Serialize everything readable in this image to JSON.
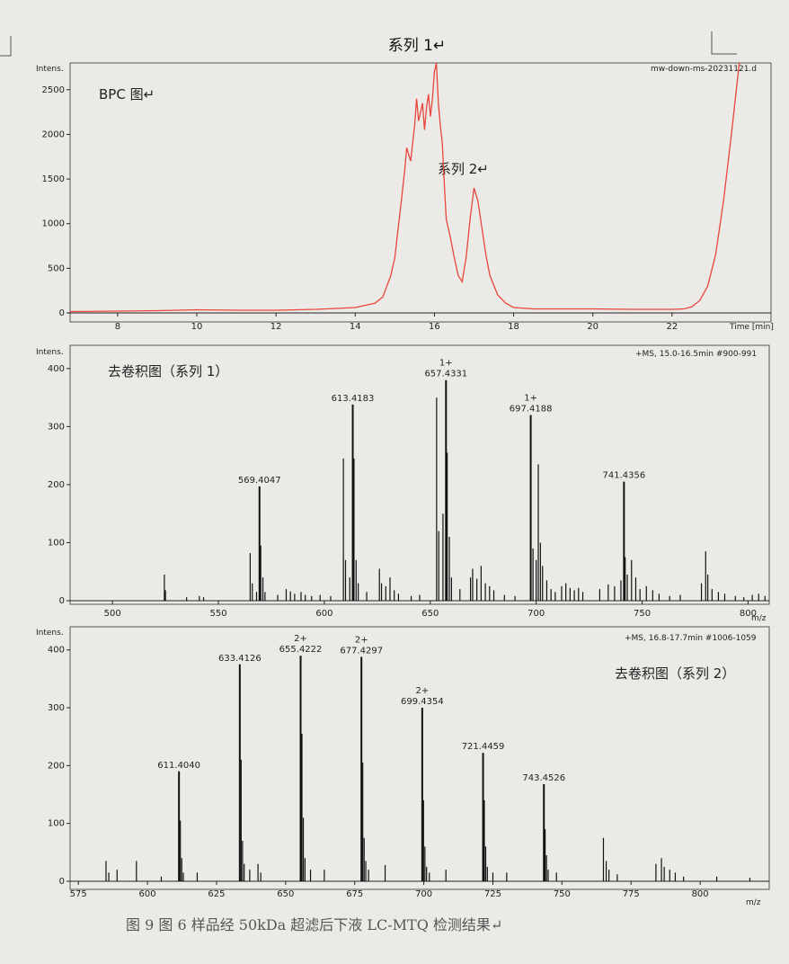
{
  "page": {
    "title": "系列 1↵",
    "caption": "图 9   图 6 样品经 50kDa 超滤后下液 LC-MTQ 检测结果↵"
  },
  "chart_data": [
    {
      "type": "line",
      "name": "BPC",
      "ylabel": "Intens.",
      "xlabel": "Time [min]",
      "info": "mw-down-ms-20231121.d",
      "annotations": [
        "BPC 图↵",
        "系列 2↵"
      ],
      "xlim": [
        6.8,
        24.5
      ],
      "ylim": [
        0,
        2800
      ],
      "xticks": [
        8,
        10,
        12,
        14,
        16,
        18,
        20,
        22
      ],
      "yticks": [
        0,
        500,
        1000,
        1500,
        2000,
        2500
      ],
      "color": "#e8463c",
      "x": [
        6.8,
        8,
        9,
        10,
        11,
        12,
        13,
        14,
        14.5,
        14.7,
        14.8,
        14.9,
        15.0,
        15.05,
        15.15,
        15.25,
        15.3,
        15.4,
        15.5,
        15.55,
        15.6,
        15.7,
        15.75,
        15.8,
        15.85,
        15.9,
        15.95,
        16.0,
        16.05,
        16.1,
        16.15,
        16.2,
        16.25,
        16.3,
        16.4,
        16.5,
        16.6,
        16.7,
        16.8,
        16.9,
        17.0,
        17.1,
        17.2,
        17.3,
        17.4,
        17.6,
        17.8,
        18.0,
        18.5,
        19,
        20,
        21,
        22,
        22.3,
        22.5,
        22.7,
        22.9,
        23.1,
        23.3,
        23.5,
        23.7
      ],
      "y": [
        15,
        20,
        25,
        35,
        30,
        30,
        40,
        60,
        110,
        180,
        300,
        420,
        620,
        820,
        1200,
        1600,
        1850,
        1700,
        2100,
        2400,
        2150,
        2350,
        2050,
        2300,
        2450,
        2200,
        2400,
        2700,
        2800,
        2350,
        2100,
        1900,
        1450,
        1050,
        850,
        620,
        420,
        350,
        620,
        1050,
        1400,
        1250,
        950,
        650,
        420,
        200,
        110,
        60,
        45,
        45,
        45,
        40,
        40,
        45,
        70,
        140,
        300,
        650,
        1250,
        2000,
        2800
      ]
    },
    {
      "type": "bar",
      "name": "去卷积图（系列 1）",
      "ylabel": "Intens.",
      "xlabel": "m/z",
      "info": "+MS, 15.0-16.5min #900-991",
      "xlim": [
        480,
        810
      ],
      "ylim": [
        0,
        440
      ],
      "xticks": [
        500,
        550,
        600,
        650,
        700,
        750,
        800
      ],
      "yticks": [
        0,
        100,
        200,
        300,
        400
      ],
      "peaks": [
        {
          "x": 569.4047,
          "y": 197,
          "label": "569.4047"
        },
        {
          "x": 613.4183,
          "y": 338,
          "label": "613.4183"
        },
        {
          "x": 657.4331,
          "y": 380,
          "label": "657.4331",
          "charge": "1+"
        },
        {
          "x": 697.4188,
          "y": 320,
          "label": "697.4188",
          "charge": "1+"
        },
        {
          "x": 741.4356,
          "y": 205,
          "label": "741.4356"
        }
      ],
      "minor": [
        [
          524.5,
          45
        ],
        [
          525,
          18
        ],
        [
          535,
          6
        ],
        [
          541,
          8
        ],
        [
          543,
          6
        ],
        [
          565,
          82
        ],
        [
          566,
          30
        ],
        [
          568,
          15
        ],
        [
          570,
          95
        ],
        [
          571,
          40
        ],
        [
          572,
          15
        ],
        [
          578,
          10
        ],
        [
          582,
          20
        ],
        [
          584,
          16
        ],
        [
          586,
          12
        ],
        [
          589,
          15
        ],
        [
          591,
          10
        ],
        [
          594,
          8
        ],
        [
          598,
          10
        ],
        [
          603,
          8
        ],
        [
          609,
          245
        ],
        [
          610,
          70
        ],
        [
          612,
          40
        ],
        [
          614,
          245
        ],
        [
          615,
          70
        ],
        [
          616,
          30
        ],
        [
          620,
          15
        ],
        [
          626,
          55
        ],
        [
          627,
          30
        ],
        [
          629,
          25
        ],
        [
          631,
          40
        ],
        [
          633,
          18
        ],
        [
          635,
          12
        ],
        [
          641,
          8
        ],
        [
          645,
          10
        ],
        [
          653,
          350
        ],
        [
          654,
          120
        ],
        [
          656,
          150
        ],
        [
          658,
          255
        ],
        [
          659,
          110
        ],
        [
          660,
          40
        ],
        [
          664,
          20
        ],
        [
          669,
          40
        ],
        [
          670,
          55
        ],
        [
          672,
          38
        ],
        [
          674,
          60
        ],
        [
          676,
          30
        ],
        [
          678,
          25
        ],
        [
          680,
          18
        ],
        [
          685,
          10
        ],
        [
          690,
          8
        ],
        [
          697.5,
          170
        ],
        [
          698.5,
          90
        ],
        [
          700,
          70
        ],
        [
          701,
          235
        ],
        [
          702,
          100
        ],
        [
          703,
          60
        ],
        [
          705,
          35
        ],
        [
          707,
          20
        ],
        [
          709,
          15
        ],
        [
          712,
          25
        ],
        [
          714,
          30
        ],
        [
          716,
          22
        ],
        [
          718,
          18
        ],
        [
          720,
          22
        ],
        [
          722,
          15
        ],
        [
          730,
          20
        ],
        [
          734,
          28
        ],
        [
          737,
          25
        ],
        [
          740,
          35
        ],
        [
          742,
          75
        ],
        [
          743,
          45
        ],
        [
          745,
          70
        ],
        [
          747,
          40
        ],
        [
          749,
          20
        ],
        [
          752,
          25
        ],
        [
          755,
          18
        ],
        [
          758,
          12
        ],
        [
          763,
          8
        ],
        [
          768,
          10
        ],
        [
          778,
          30
        ],
        [
          780,
          85
        ],
        [
          781,
          45
        ],
        [
          783,
          20
        ],
        [
          786,
          15
        ],
        [
          789,
          12
        ],
        [
          794,
          8
        ],
        [
          798,
          6
        ],
        [
          802,
          10
        ],
        [
          805,
          12
        ],
        [
          808,
          8
        ]
      ]
    },
    {
      "type": "bar",
      "name": "去卷积图（系列 2）",
      "ylabel": "Intens.",
      "xlabel": "m/z",
      "info": "+MS, 16.8-17.7min #1006-1059",
      "xlim": [
        572,
        825
      ],
      "ylim": [
        0,
        440
      ],
      "xticks": [
        575,
        600,
        625,
        650,
        675,
        700,
        725,
        750,
        775,
        800
      ],
      "yticks": [
        0,
        100,
        200,
        300,
        400
      ],
      "peaks": [
        {
          "x": 611.404,
          "y": 190,
          "label": "611.4040"
        },
        {
          "x": 633.4126,
          "y": 375,
          "label": "633.4126"
        },
        {
          "x": 655.4222,
          "y": 390,
          "label": "655.4222",
          "charge": "2+"
        },
        {
          "x": 677.4297,
          "y": 388,
          "label": "677.4297",
          "charge": "2+"
        },
        {
          "x": 699.4354,
          "y": 300,
          "label": "699.4354",
          "charge": "2+"
        },
        {
          "x": 721.4459,
          "y": 222,
          "label": "721.4459"
        },
        {
          "x": 743.4526,
          "y": 168,
          "label": "743.4526"
        }
      ],
      "minor": [
        [
          585,
          35
        ],
        [
          586,
          15
        ],
        [
          589,
          20
        ],
        [
          596,
          35
        ],
        [
          605,
          8
        ],
        [
          611.9,
          105
        ],
        [
          612.4,
          40
        ],
        [
          613,
          15
        ],
        [
          618,
          15
        ],
        [
          633.9,
          210
        ],
        [
          634.4,
          70
        ],
        [
          635,
          30
        ],
        [
          637,
          20
        ],
        [
          640,
          30
        ],
        [
          641,
          15
        ],
        [
          655.9,
          255
        ],
        [
          656.4,
          110
        ],
        [
          657,
          40
        ],
        [
          659,
          20
        ],
        [
          664,
          20
        ],
        [
          677.9,
          205
        ],
        [
          678.4,
          75
        ],
        [
          679,
          35
        ],
        [
          680,
          20
        ],
        [
          686,
          28
        ],
        [
          699.9,
          140
        ],
        [
          700.4,
          60
        ],
        [
          701,
          25
        ],
        [
          702,
          15
        ],
        [
          708,
          20
        ],
        [
          721.9,
          140
        ],
        [
          722.4,
          60
        ],
        [
          723,
          25
        ],
        [
          725,
          15
        ],
        [
          730,
          15
        ],
        [
          743.9,
          90
        ],
        [
          744.4,
          45
        ],
        [
          745,
          20
        ],
        [
          748,
          15
        ],
        [
          765,
          75
        ],
        [
          766,
          35
        ],
        [
          767,
          20
        ],
        [
          770,
          12
        ],
        [
          784,
          30
        ],
        [
          786,
          40
        ],
        [
          787,
          25
        ],
        [
          789,
          20
        ],
        [
          791,
          15
        ],
        [
          794,
          8
        ],
        [
          806,
          8
        ],
        [
          818,
          6
        ]
      ]
    }
  ]
}
